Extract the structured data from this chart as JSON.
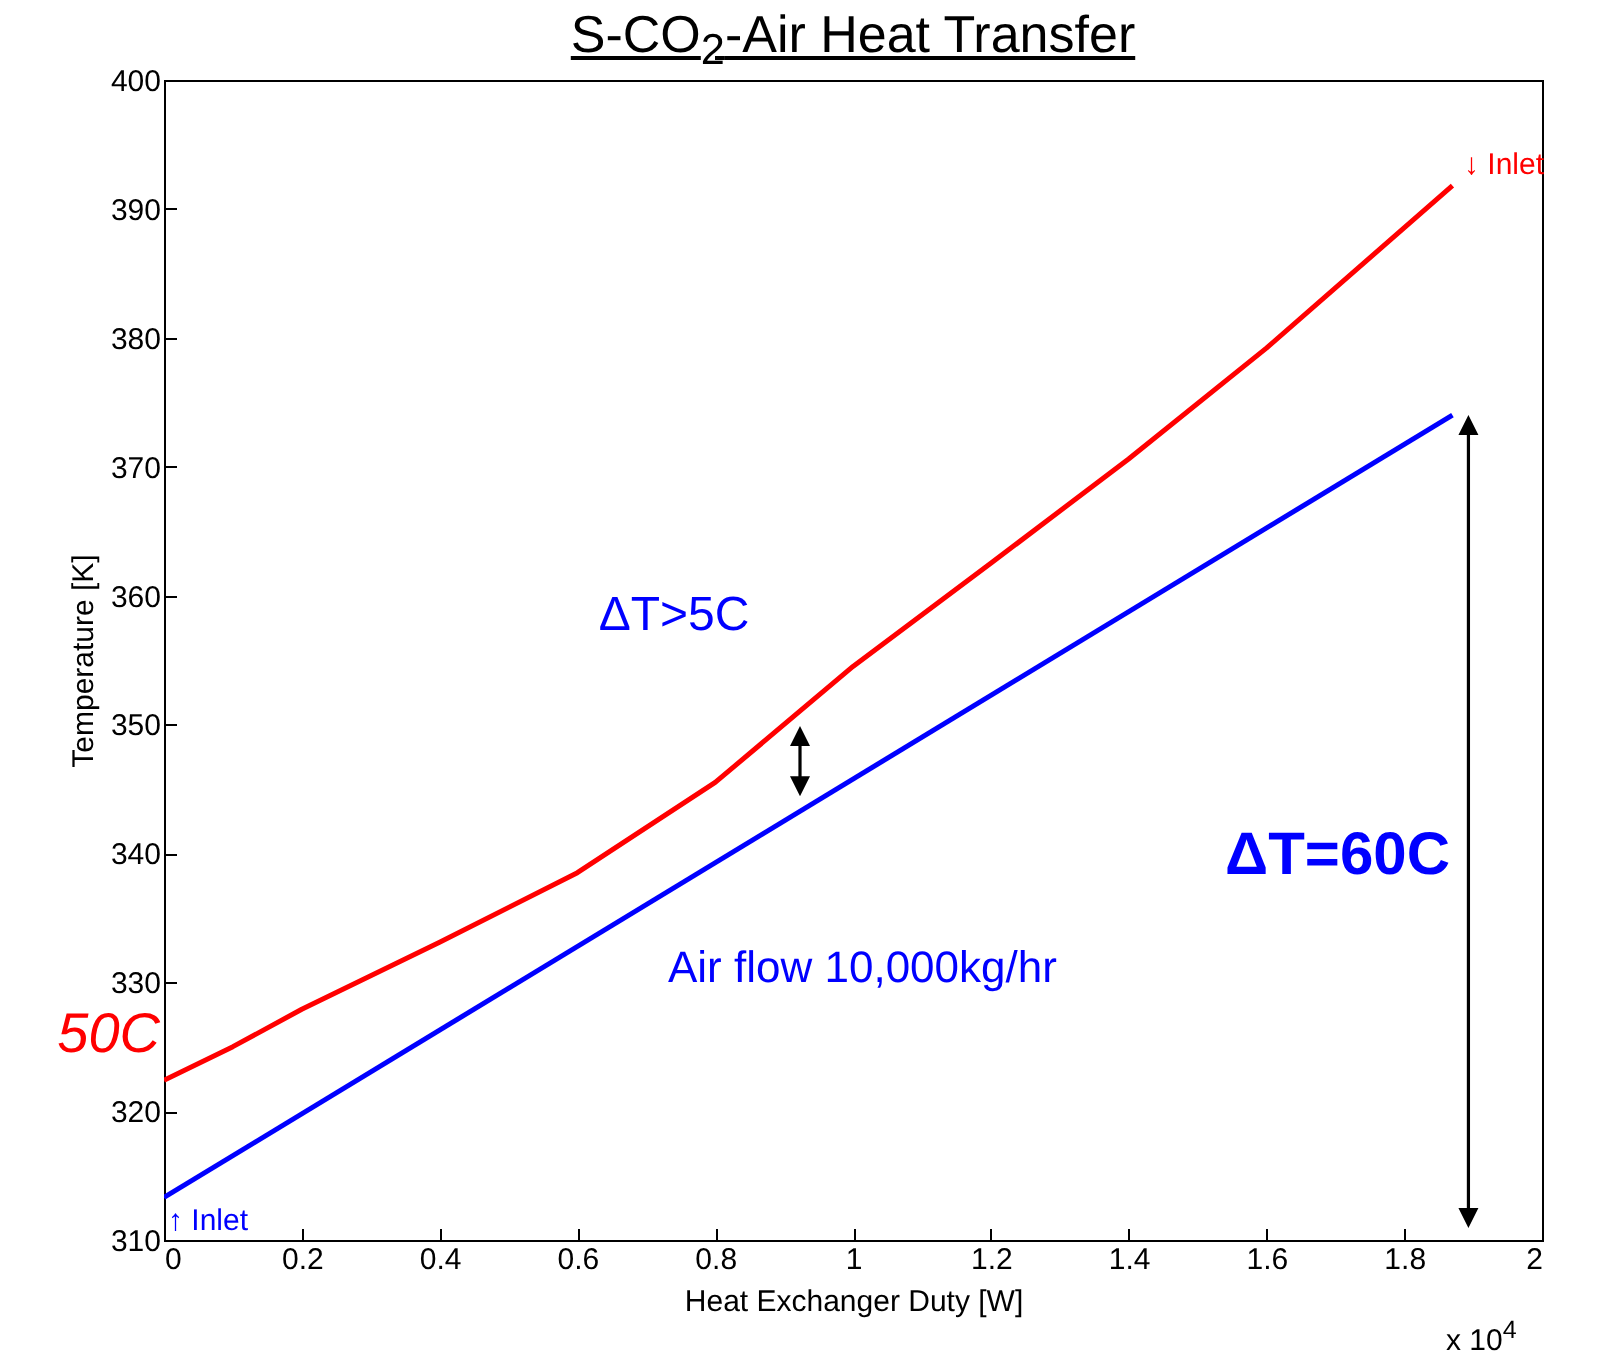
{
  "chart_data": {
    "type": "line",
    "title": "S-CO$_{2}$-Air Heat Transfer",
    "xlabel": "Heat Exchanger Duty [W]",
    "ylabel": "Temperature [K]",
    "xlim": [
      0,
      2
    ],
    "xticks": [
      0,
      0.2,
      0.4,
      0.6,
      0.8,
      1,
      1.2,
      1.4,
      1.6,
      1.8,
      2
    ],
    "ylim": [
      310,
      400
    ],
    "yticks": [
      310,
      320,
      330,
      340,
      350,
      360,
      370,
      380,
      390,
      400
    ],
    "grid": false,
    "legend": false,
    "marker": "none",
    "line_style": "solid",
    "series": [
      {
        "color": "#ff0000",
        "x": [
          0,
          0.1,
          0.2,
          0.4,
          0.6,
          0.8,
          1,
          1.2,
          1.4,
          1.6,
          1.87
        ],
        "values": [
          322.4,
          325,
          327.9,
          333.1,
          338.5,
          345.5,
          354.5,
          362.5,
          370.6,
          379.2,
          391.8
        ]
      },
      {
        "color": "#0000ff",
        "x": [
          0,
          1.87
        ],
        "values": [
          313.3,
          374
        ]
      }
    ],
    "annotations": [
      "↓ Inlet",
      "↑ Inlet",
      "50C",
      "ΔT>5C",
      "Air flow 10,000kg/hr",
      "ΔT=60C",
      "x 10$^{4}$"
    ]
  }
}
